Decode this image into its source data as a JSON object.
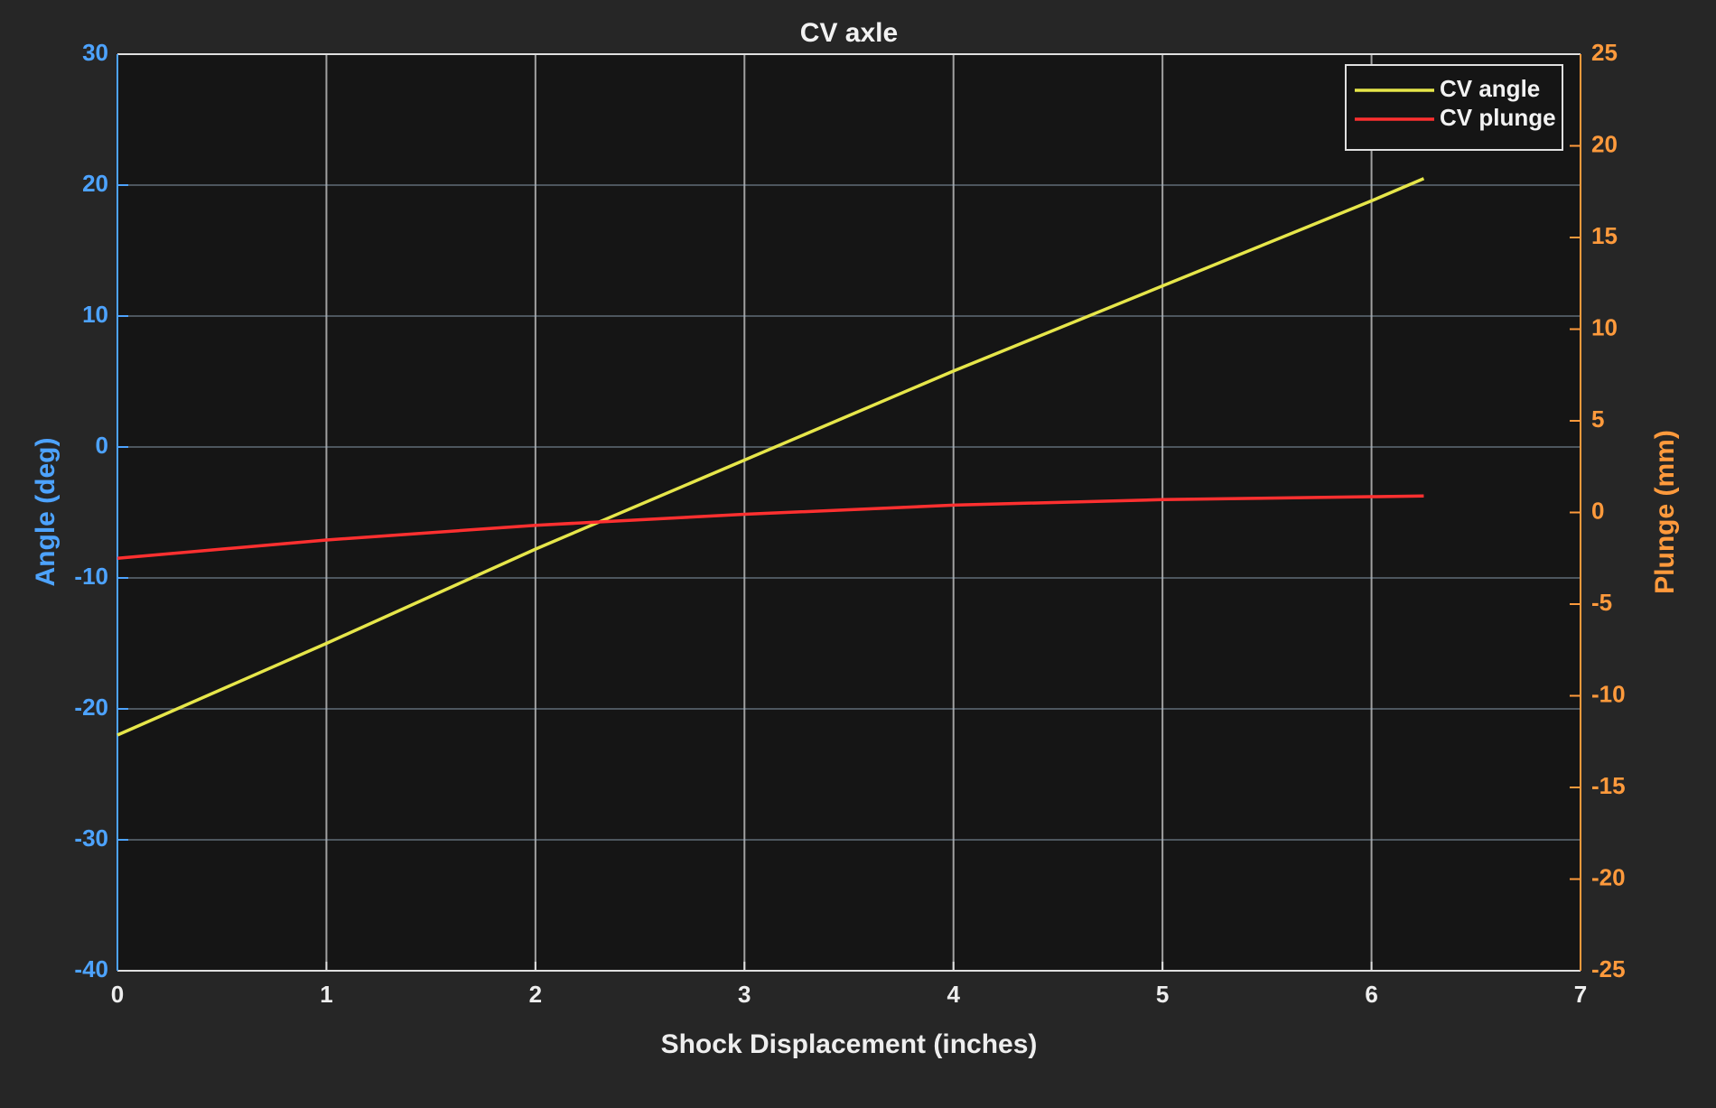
{
  "chart_data": {
    "type": "line",
    "title": "CV axle",
    "x_label": "Shock Displacement (inches)",
    "y_label": "Angle (deg)",
    "y2_label": "Plunge (mm)",
    "x": [
      0,
      1,
      2,
      3,
      4,
      5,
      6,
      6.25
    ],
    "series": [
      {
        "name": "CV angle",
        "color": "#e6e64a",
        "values": [
          -22,
          -15,
          -7.8,
          -1,
          5.8,
          12.3,
          18.8,
          20.5
        ]
      },
      {
        "name": "CV plunge",
        "color": "#ff3030",
        "axis": "y2",
        "values": [
          -2.5,
          -1.5,
          -0.7,
          -0.1,
          0.4,
          0.7,
          0.86,
          0.9
        ]
      }
    ],
    "xlim": [
      0,
      7
    ],
    "xticks": [
      0,
      1,
      2,
      3,
      4,
      5,
      6,
      7
    ],
    "ylim": [
      -40,
      30
    ],
    "yticks": [
      -40,
      -30,
      -20,
      -10,
      0,
      10,
      20,
      30
    ],
    "y2lim": [
      -25,
      25
    ],
    "y2ticks": [
      -25,
      -20,
      -15,
      -10,
      -5,
      0,
      5,
      10,
      15,
      20,
      25
    ],
    "y_color": "#4da3ff",
    "y2_color": "#ff9a3c",
    "grid": true,
    "legend": "northeast"
  }
}
